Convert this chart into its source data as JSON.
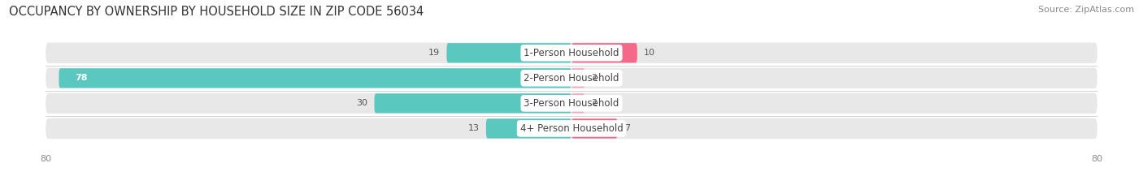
{
  "title": "OCCUPANCY BY OWNERSHIP BY HOUSEHOLD SIZE IN ZIP CODE 56034",
  "source": "Source: ZipAtlas.com",
  "categories": [
    "1-Person Household",
    "2-Person Household",
    "3-Person Household",
    "4+ Person Household"
  ],
  "owner_values": [
    19,
    78,
    30,
    13
  ],
  "renter_values": [
    10,
    2,
    2,
    7
  ],
  "owner_color": "#5BC8C0",
  "renter_colors": [
    "#F4688A",
    "#F4AABE",
    "#F4AABE",
    "#F4688A"
  ],
  "bar_bg_color": "#E8E8E8",
  "axis_max": 80,
  "title_fontsize": 10.5,
  "source_fontsize": 8,
  "tick_fontsize": 8,
  "bar_label_fontsize": 8,
  "category_fontsize": 8.5,
  "legend_fontsize": 8.5
}
